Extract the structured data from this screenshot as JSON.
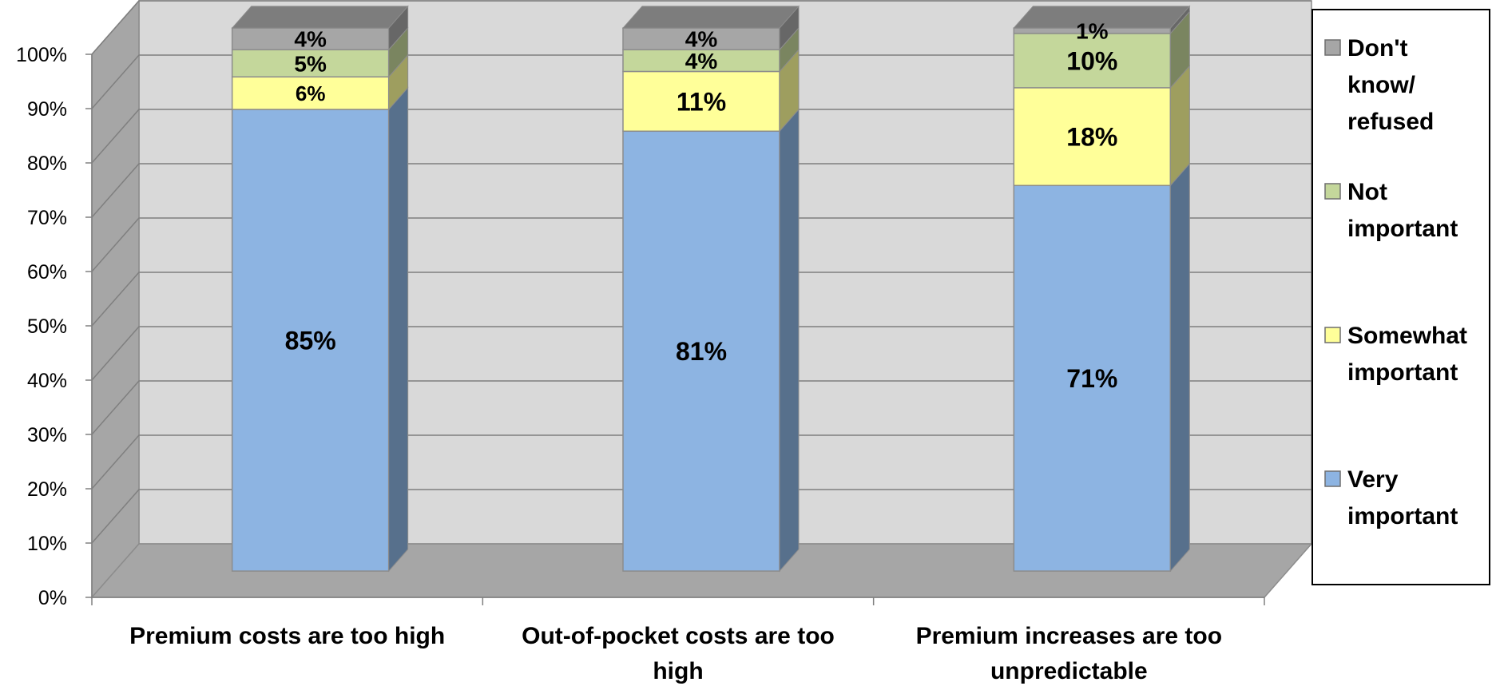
{
  "chart_data": {
    "type": "bar",
    "stacked": true,
    "three_d": true,
    "categories": [
      "Premium costs are too high",
      "Out-of-pocket costs are too high",
      "Premium increases are too unpredictable"
    ],
    "category_lines": [
      [
        "Premium costs are too high"
      ],
      [
        "Out-of-pocket costs are too",
        "high"
      ],
      [
        "Premium increases are too",
        "unpredictable"
      ]
    ],
    "series": [
      {
        "name": "Very important",
        "values": [
          85,
          81,
          71
        ],
        "labels": [
          "85%",
          "81%",
          "71%"
        ],
        "color": "#8DB4E2"
      },
      {
        "name": "Somewhat important",
        "values": [
          6,
          11,
          18
        ],
        "labels": [
          "6%",
          "11%",
          "18%"
        ],
        "color": "#FFFF99"
      },
      {
        "name": "Not important",
        "values": [
          5,
          4,
          10
        ],
        "labels": [
          "5%",
          "4%",
          "10%"
        ],
        "color": "#C4D79B"
      },
      {
        "name": "Don't know/ refused",
        "values": [
          4,
          4,
          1
        ],
        "labels": [
          "4%",
          "4%",
          "1%"
        ],
        "color": "#A6A6A6"
      }
    ],
    "legend": [
      {
        "lines": [
          "Don't",
          "know/",
          "refused"
        ],
        "color": "#A6A6A6"
      },
      {
        "lines": [
          "Not",
          "important"
        ],
        "color": "#C4D79B"
      },
      {
        "lines": [
          "Somewhat",
          "important"
        ],
        "color": "#FFFF99"
      },
      {
        "lines": [
          "Very",
          "important"
        ],
        "color": "#8DB4E2"
      }
    ],
    "y_ticks": [
      "0%",
      "10%",
      "20%",
      "30%",
      "40%",
      "50%",
      "60%",
      "70%",
      "80%",
      "90%",
      "100%"
    ],
    "ylim": [
      0,
      100
    ],
    "grid": true,
    "legend_position": "right",
    "title": "",
    "xlabel": "",
    "ylabel": ""
  }
}
